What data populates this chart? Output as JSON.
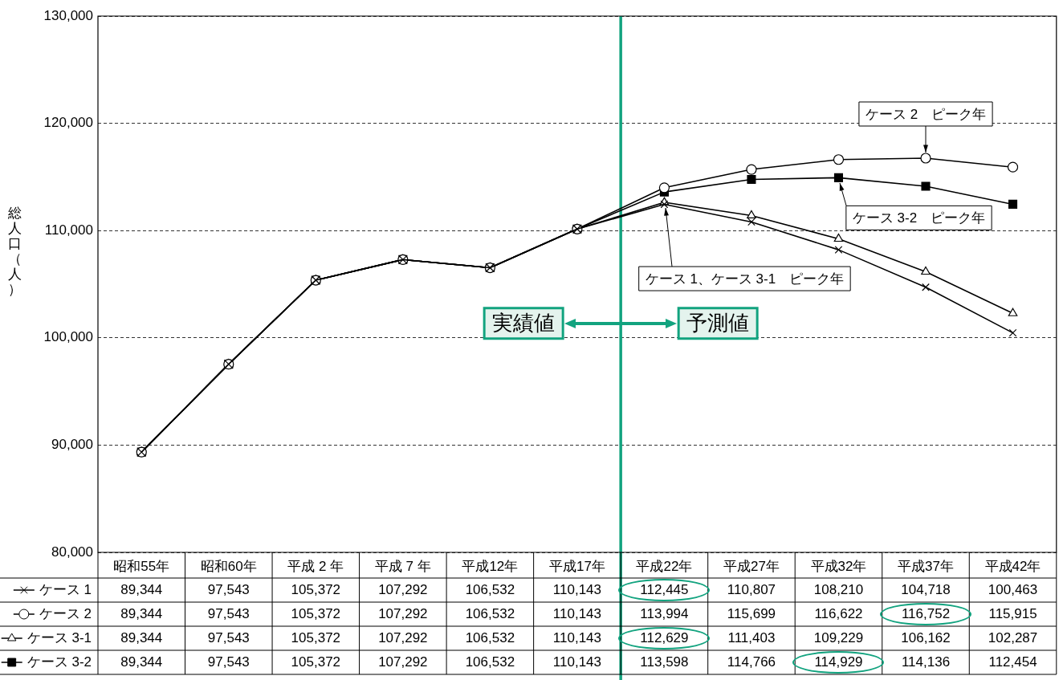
{
  "chart_data": {
    "type": "line",
    "ylabel": "総人口（人）",
    "categories": [
      "昭和55年",
      "昭和60年",
      "平成 2 年",
      "平成 7 年",
      "平成12年",
      "平成17年",
      "平成22年",
      "平成27年",
      "平成32年",
      "平成37年",
      "平成42年"
    ],
    "series": [
      {
        "name": "ケース 1",
        "color": "#000000",
        "marker": "cross",
        "values": [
          89344,
          97543,
          105372,
          107292,
          106532,
          110143,
          112445,
          110807,
          108210,
          104718,
          100463
        ],
        "value_labels": [
          "89,344",
          "97,543",
          "105,372",
          "107,292",
          "106,532",
          "110,143",
          "112,445",
          "110,807",
          "108,210",
          "104,718",
          "100,463"
        ]
      },
      {
        "name": "ケース 2",
        "color": "#000000",
        "marker": "circle",
        "values": [
          89344,
          97543,
          105372,
          107292,
          106532,
          110143,
          113994,
          115699,
          116622,
          116752,
          115915
        ],
        "value_labels": [
          "89,344",
          "97,543",
          "105,372",
          "107,292",
          "106,532",
          "110,143",
          "113,994",
          "115,699",
          "116,622",
          "116,752",
          "115,915"
        ]
      },
      {
        "name": "ケース 3-1",
        "color": "#000000",
        "marker": "triangle",
        "values": [
          89344,
          97543,
          105372,
          107292,
          106532,
          110143,
          112629,
          111403,
          109229,
          106162,
          102287
        ],
        "value_labels": [
          "89,344",
          "97,543",
          "105,372",
          "107,292",
          "106,532",
          "110,143",
          "112,629",
          "111,403",
          "109,229",
          "106,162",
          "102,287"
        ]
      },
      {
        "name": "ケース 3-2",
        "color": "#000000",
        "marker": "square",
        "values": [
          89344,
          97543,
          105372,
          107292,
          106532,
          110143,
          113598,
          114766,
          114929,
          114136,
          112454
        ],
        "value_labels": [
          "89,344",
          "97,543",
          "105,372",
          "107,292",
          "106,532",
          "110,143",
          "113,598",
          "114,766",
          "114,929",
          "114,136",
          "112,454"
        ]
      }
    ],
    "ylim": [
      80000,
      130000
    ],
    "yticks": [
      {
        "value": 80000,
        "label": "80,000"
      },
      {
        "value": 90000,
        "label": "90,000"
      },
      {
        "value": 100000,
        "label": "100,000"
      },
      {
        "value": 110000,
        "label": "110,000"
      },
      {
        "value": 120000,
        "label": "120,000"
      },
      {
        "value": 130000,
        "label": "130,000"
      }
    ],
    "grid": "y",
    "legend": "bottom left",
    "line_style": "solid",
    "ref_lines": [
      {
        "axis": "x",
        "value": "平成22年",
        "label": null,
        "color": "#12a37f"
      }
    ],
    "annotations": [
      {
        "text": "ケース 2　ピーク年",
        "x": "平成37年",
        "y": 116752
      },
      {
        "text": "ケース 3-2　ピーク年",
        "x": "平成32年",
        "y": 114929
      },
      {
        "text": "ケース 1、ケース 3-1　ピーク年",
        "x": "平成22年",
        "y": 112629
      },
      "実績値",
      "予測値"
    ]
  }
}
